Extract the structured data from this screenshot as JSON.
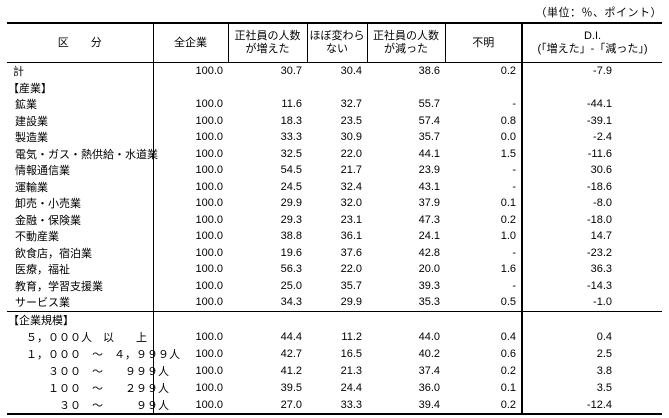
{
  "unit_note": "（単位：％、ポイント）",
  "table": {
    "columns": [
      {
        "label": "区　　分"
      },
      {
        "label": "全企業"
      },
      {
        "label": "正社員の人数\nが増えた"
      },
      {
        "label": "ほぼ変わら\nない"
      },
      {
        "label": "正社員の人数\nが減った"
      },
      {
        "label": "不明"
      },
      {
        "label": "D.I.\n(「増えた」-「減った」)"
      }
    ],
    "rows": [
      {
        "type": "total",
        "label": "計",
        "values": [
          "100.0",
          "30.7",
          "30.4",
          "38.6",
          "0.2",
          "-7.9"
        ]
      },
      {
        "type": "section",
        "label": "【産業】",
        "values": [
          "",
          "",
          "",
          "",
          "",
          ""
        ]
      },
      {
        "type": "item",
        "label": "鉱業",
        "values": [
          "100.0",
          "11.6",
          "32.7",
          "55.7",
          "-",
          "-44.1"
        ]
      },
      {
        "type": "item",
        "label": "建設業",
        "values": [
          "100.0",
          "18.3",
          "23.5",
          "57.4",
          "0.8",
          "-39.1"
        ]
      },
      {
        "type": "item",
        "label": "製造業",
        "values": [
          "100.0",
          "33.3",
          "30.9",
          "35.7",
          "0.0",
          "-2.4"
        ]
      },
      {
        "type": "item",
        "label": "電気・ガス・熱供給・水道業",
        "values": [
          "100.0",
          "32.5",
          "22.0",
          "44.1",
          "1.5",
          "-11.6"
        ]
      },
      {
        "type": "item",
        "label": "情報通信業",
        "values": [
          "100.0",
          "54.5",
          "21.7",
          "23.9",
          "-",
          "30.6"
        ]
      },
      {
        "type": "item",
        "label": "運輸業",
        "values": [
          "100.0",
          "24.5",
          "32.4",
          "43.1",
          "-",
          "-18.6"
        ]
      },
      {
        "type": "item",
        "label": "卸売・小売業",
        "values": [
          "100.0",
          "29.9",
          "32.0",
          "37.9",
          "0.1",
          "-8.0"
        ]
      },
      {
        "type": "item",
        "label": "金融・保険業",
        "values": [
          "100.0",
          "29.3",
          "23.1",
          "47.3",
          "0.2",
          "-18.0"
        ]
      },
      {
        "type": "item",
        "label": "不動産業",
        "values": [
          "100.0",
          "38.8",
          "36.1",
          "24.1",
          "1.0",
          "14.7"
        ]
      },
      {
        "type": "item",
        "label": "飲食店，宿泊業",
        "values": [
          "100.0",
          "19.6",
          "37.6",
          "42.8",
          "-",
          "-23.2"
        ]
      },
      {
        "type": "item",
        "label": "医療，福祉",
        "values": [
          "100.0",
          "56.3",
          "22.0",
          "20.0",
          "1.6",
          "36.3"
        ]
      },
      {
        "type": "item",
        "label": "教育，学習支援業",
        "values": [
          "100.0",
          "25.0",
          "35.7",
          "39.3",
          "-",
          "-14.3"
        ]
      },
      {
        "type": "item",
        "label": "サービス業",
        "values": [
          "100.0",
          "34.3",
          "29.9",
          "35.3",
          "0.5",
          "-1.0"
        ]
      },
      {
        "type": "section",
        "label": "【企業規模】",
        "values": [
          "",
          "",
          "",
          "",
          "",
          ""
        ],
        "rule_above": true
      },
      {
        "type": "size",
        "label": "５，０００人　以　　上",
        "values": [
          "100.0",
          "44.4",
          "11.2",
          "44.0",
          "0.4",
          "0.4"
        ]
      },
      {
        "type": "size",
        "label": "１，０００　～　４，９９９人",
        "values": [
          "100.0",
          "42.7",
          "16.5",
          "40.2",
          "0.6",
          "2.5"
        ]
      },
      {
        "type": "size",
        "label": "　　３００　～　　９９９人",
        "values": [
          "100.0",
          "41.2",
          "21.3",
          "37.4",
          "0.2",
          "3.8"
        ]
      },
      {
        "type": "size",
        "label": "　　１００　～　　２９９人",
        "values": [
          "100.0",
          "39.5",
          "24.4",
          "36.0",
          "0.1",
          "3.5"
        ]
      },
      {
        "type": "size",
        "label": "　　　３０　～　　　９９人",
        "values": [
          "100.0",
          "27.0",
          "33.3",
          "39.4",
          "0.2",
          "-12.4"
        ]
      }
    ]
  }
}
